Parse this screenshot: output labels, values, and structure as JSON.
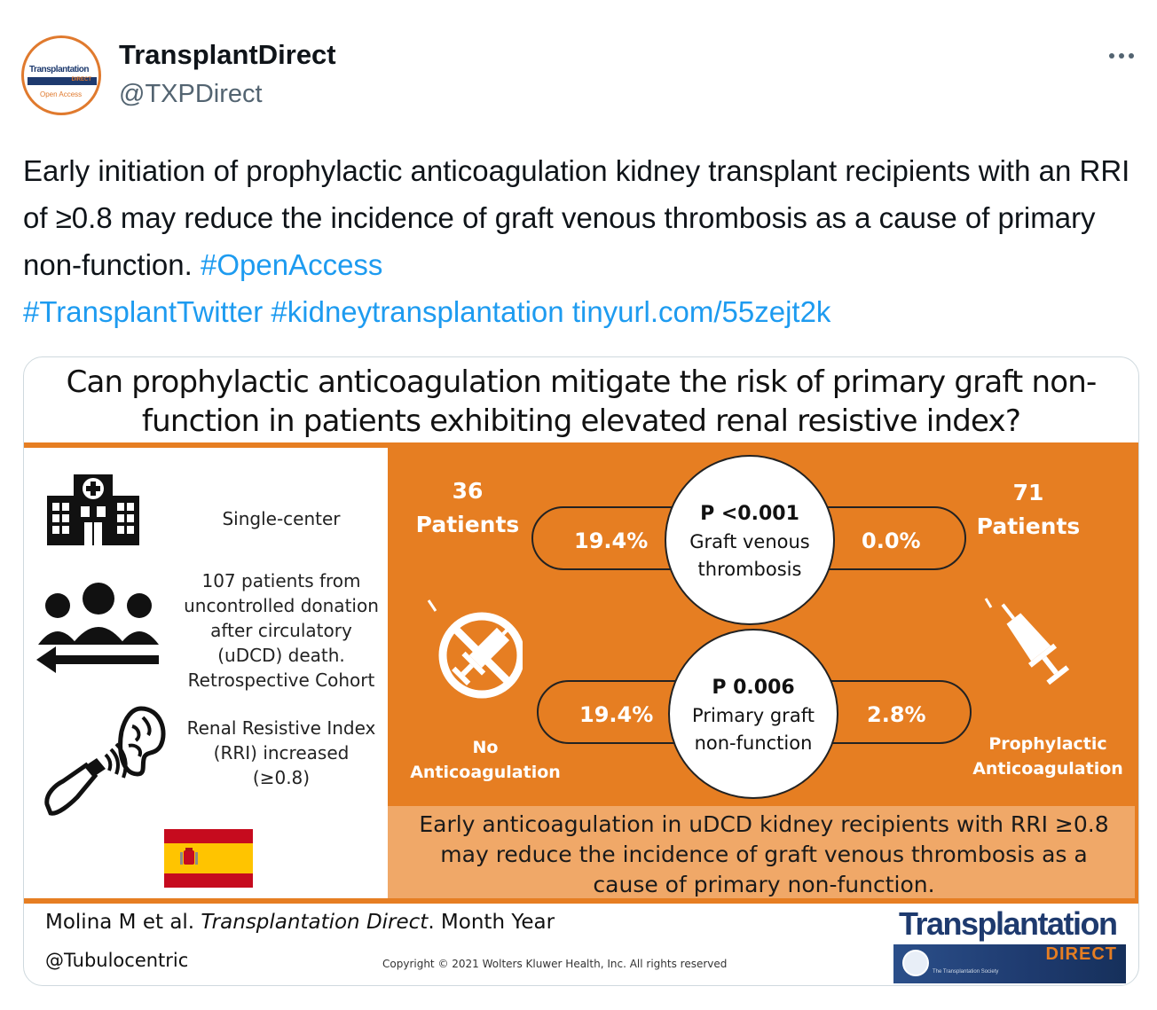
{
  "tweet": {
    "display_name": "TransplantDirect",
    "handle": "@TXPDirect",
    "text": "Early initiation of prophylactic anticoagulation kidney transplant recipients with an RRI of ≥0.8 may reduce the incidence of graft venous thrombosis as a cause of primary non-function.",
    "hashtags": [
      "#OpenAccess",
      "#TransplantTwitter",
      "#kidneytransplantation"
    ],
    "link": "tinyurl.com/55zejt2k",
    "avatar": {
      "brand": "Transplantation",
      "band_text": "DIRECT",
      "sub": "Open Access"
    }
  },
  "abstract": {
    "title_line1": "Can prophylactic anticoagulation mitigate the risk of primary graft non-",
    "title_line2": "function in patients exhibiting elevated renal resistive index?",
    "facts": [
      {
        "icon": "hospital-icon",
        "text": "Single-center"
      },
      {
        "icon": "people-icon",
        "lines": [
          "107 patients from",
          "uncontrolled donation",
          "after circulatory",
          "(uDCD) death.",
          "Retrospective Cohort"
        ]
      },
      {
        "icon": "ultrasound-kidney-icon",
        "lines": [
          "Renal Resistive Index",
          "(RRI) increased (≥0.8)"
        ]
      },
      {
        "icon": "spain-flag-icon"
      }
    ],
    "groups": {
      "left": {
        "count": "36",
        "unit": "Patients",
        "label_line1": "No",
        "label_line2": "Anticoagulation"
      },
      "right": {
        "count": "71",
        "unit": "Patients",
        "label_line1": "Prophylactic",
        "label_line2": "Anticoagulation"
      }
    },
    "outcomes": [
      {
        "p": "P <0.001",
        "label_line1": "Graft venous",
        "label_line2": "thrombosis",
        "left_value": "19.4%",
        "right_value": "0.0%"
      },
      {
        "p": "P 0.006",
        "label_line1": "Primary graft",
        "label_line2": "non-function",
        "left_value": "19.4%",
        "right_value": "2.8%"
      }
    ],
    "conclusion_lines": [
      "Early anticoagulation in uDCD kidney recipients with RRI ≥0.8",
      "may reduce the incidence of graft venous thrombosis as a",
      "cause of primary non-function."
    ],
    "citation_authors": "Molina M et al. ",
    "citation_journal": "Transplantation Direct",
    "citation_date": ". Month Year",
    "author_handle": "@Tubulocentric",
    "copyright": "Copyright © 2021  Wolters Kluwer Health, Inc. All rights reserved",
    "logo": {
      "name": "Transplantation",
      "band": "DIRECT",
      "society": "The Transplantation Society"
    }
  },
  "colors": {
    "accent_orange": "#e67e22",
    "light_orange": "#f0a868",
    "link_blue": "#1d9bf0",
    "navy": "#1e3a6e"
  }
}
